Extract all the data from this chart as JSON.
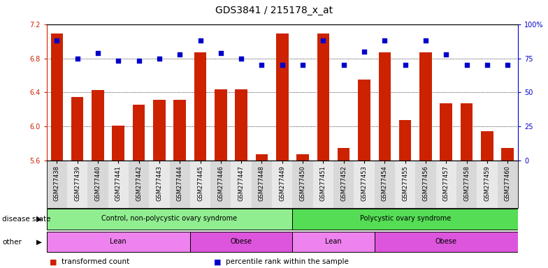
{
  "title": "GDS3841 / 215178_x_at",
  "samples": [
    "GSM277438",
    "GSM277439",
    "GSM277440",
    "GSM277441",
    "GSM277442",
    "GSM277443",
    "GSM277444",
    "GSM277445",
    "GSM277446",
    "GSM277447",
    "GSM277448",
    "GSM277449",
    "GSM277450",
    "GSM277451",
    "GSM277452",
    "GSM277453",
    "GSM277454",
    "GSM277455",
    "GSM277456",
    "GSM277457",
    "GSM277458",
    "GSM277459",
    "GSM277460"
  ],
  "bar_values": [
    7.09,
    6.35,
    6.43,
    6.01,
    6.26,
    6.31,
    6.31,
    6.87,
    6.44,
    6.44,
    5.68,
    7.09,
    5.68,
    7.09,
    5.75,
    6.55,
    6.87,
    6.08,
    6.87,
    6.27,
    6.27,
    5.95,
    5.75
  ],
  "percentile_values": [
    88,
    75,
    79,
    73,
    73,
    75,
    78,
    88,
    79,
    75,
    70,
    70,
    70,
    88,
    70,
    80,
    88,
    70,
    88,
    78,
    70,
    70,
    70
  ],
  "bar_color": "#cc2200",
  "dot_color": "#0000cc",
  "ylim_left": [
    5.6,
    7.2
  ],
  "yticks_left": [
    5.6,
    6.0,
    6.4,
    6.8,
    7.2
  ],
  "ylim_right": [
    0,
    100
  ],
  "yticks_right": [
    0,
    25,
    50,
    75,
    100
  ],
  "ytick_labels_right": [
    "0",
    "25",
    "50",
    "75",
    "100%"
  ],
  "grid_values": [
    6.0,
    6.4,
    6.8
  ],
  "disease_state_groups": [
    {
      "label": "Control, non-polycystic ovary syndrome",
      "start": 0,
      "end": 12,
      "color": "#90ee90"
    },
    {
      "label": "Polycystic ovary syndrome",
      "start": 12,
      "end": 23,
      "color": "#55dd55"
    }
  ],
  "other_groups": [
    {
      "label": "Lean",
      "start": 0,
      "end": 7,
      "color": "#ee82ee"
    },
    {
      "label": "Obese",
      "start": 7,
      "end": 12,
      "color": "#dd55dd"
    },
    {
      "label": "Lean",
      "start": 12,
      "end": 16,
      "color": "#ee82ee"
    },
    {
      "label": "Obese",
      "start": 16,
      "end": 23,
      "color": "#dd55dd"
    }
  ],
  "disease_label": "disease state",
  "other_label": "other",
  "legend": [
    {
      "label": "transformed count",
      "color": "#cc2200"
    },
    {
      "label": "percentile rank within the sample",
      "color": "#0000cc"
    }
  ]
}
